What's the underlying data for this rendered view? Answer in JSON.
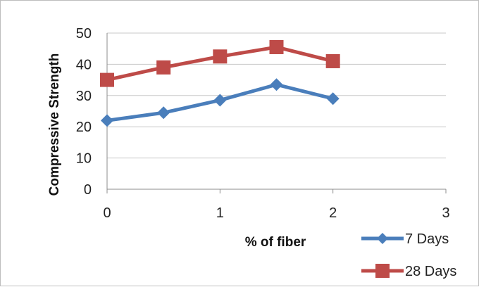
{
  "chart_data": {
    "type": "line",
    "title": "",
    "xlabel": "% of fiber",
    "ylabel": "Compressive Strength",
    "xlim": [
      0,
      3
    ],
    "ylim": [
      0,
      50
    ],
    "x_ticks": [
      "0",
      "1",
      "2",
      "3"
    ],
    "y_ticks": [
      "0",
      "10",
      "20",
      "30",
      "40",
      "50"
    ],
    "grid": "horizontal",
    "legend_position": "bottom-right",
    "x": [
      0,
      0.5,
      1,
      1.5,
      2
    ],
    "series": [
      {
        "name": "7 Days",
        "values": [
          22,
          24.5,
          28.5,
          33.5,
          29
        ],
        "color": "#4a7ebb",
        "marker": "diamond"
      },
      {
        "name": "28 Days",
        "values": [
          35,
          39,
          42.5,
          45.5,
          41
        ],
        "color": "#be4b48",
        "marker": "square"
      }
    ]
  }
}
